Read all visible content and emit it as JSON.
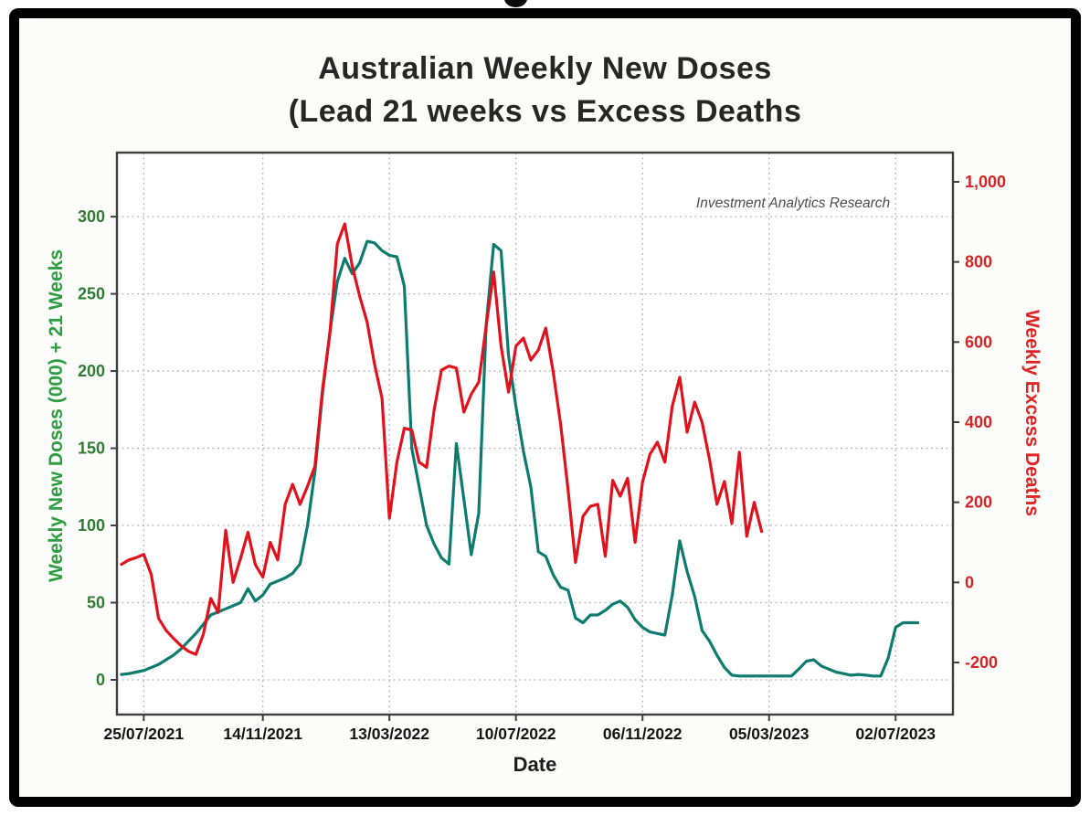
{
  "chart_data": {
    "type": "line",
    "title_line1": "Australian Weekly New Doses",
    "title_line2": "(Lead 21 weeks vs Excess Deaths",
    "annotation": "Investment Analytics Research",
    "xlabel": "Date",
    "grid": {
      "show": true,
      "style": "dotted",
      "color": "#b8b8b8"
    },
    "spine_color": "#3f3f3f",
    "x_domain": [
      -3.6,
      108.7
    ],
    "x_ticks": [
      {
        "week": 0,
        "label": "25/07/2021"
      },
      {
        "week": 16,
        "label": "14/11/2021"
      },
      {
        "week": 33,
        "label": "13/03/2022"
      },
      {
        "week": 50,
        "label": "10/07/2022"
      },
      {
        "week": 67,
        "label": "06/11/2022"
      },
      {
        "week": 84,
        "label": "05/03/2023"
      },
      {
        "week": 101,
        "label": "02/07/2023"
      }
    ],
    "left_axis": {
      "title": "Weekly New Doses (000) + 21 Weeks",
      "title_color": "#2f9e41",
      "tick_color": "#2e7d32",
      "ticks": [
        0,
        50,
        100,
        150,
        200,
        250,
        300
      ],
      "tick_labels": [
        "0",
        "50",
        "100",
        "150",
        "200",
        "250",
        "300"
      ],
      "range": [
        -22.5,
        341.5
      ]
    },
    "right_axis": {
      "title": "Weekly Excess Deaths",
      "title_color": "#e02424",
      "tick_color": "#d32525",
      "ticks": [
        -200,
        0,
        200,
        400,
        600,
        800,
        1000
      ],
      "tick_labels": [
        "-200",
        "0",
        "200",
        "400",
        "600",
        "800",
        "1,000"
      ],
      "range": [
        -330,
        1073
      ]
    },
    "series": [
      {
        "key": "doses",
        "name": "Weekly New Doses (000) + 21 Weeks",
        "axis": "left",
        "color": "#0e7b6f",
        "start_week": -3,
        "values": [
          3.5,
          4,
          5,
          6,
          8,
          10,
          13,
          16,
          20,
          25,
          30,
          36,
          42,
          44,
          46,
          48,
          50,
          59,
          51,
          55,
          62,
          64,
          66,
          69,
          75,
          100,
          135,
          185,
          225,
          258,
          273,
          263,
          270,
          284,
          283,
          278,
          275,
          274,
          255,
          150,
          125,
          100,
          88,
          79,
          75,
          153,
          117,
          81,
          108,
          230,
          282,
          278,
          210,
          177,
          148,
          125,
          83,
          80,
          68,
          60,
          58,
          40,
          37,
          42,
          42,
          45,
          49,
          51,
          47,
          39,
          34,
          31,
          30,
          29,
          55,
          90,
          70,
          54,
          32,
          25,
          16,
          8,
          3,
          2.5,
          2.5,
          2.5,
          2.5,
          2.5,
          2.5,
          2.5,
          2.5,
          7,
          12,
          13,
          9,
          7,
          5,
          4,
          3,
          3.5,
          3,
          2.5,
          2.5,
          14,
          34,
          37,
          37,
          37
        ]
      },
      {
        "key": "excess_deaths",
        "name": "Weekly Excess Deaths",
        "axis": "right",
        "color": "#e2121d",
        "start_week": -3,
        "values": [
          45,
          56,
          62,
          70,
          20,
          -90,
          -120,
          -140,
          -158,
          -172,
          -180,
          -130,
          -40,
          -75,
          130,
          0,
          60,
          125,
          44,
          13,
          100,
          56,
          195,
          245,
          195,
          240,
          290,
          480,
          620,
          845,
          895,
          790,
          715,
          650,
          545,
          460,
          160,
          300,
          385,
          380,
          300,
          287,
          430,
          530,
          540,
          535,
          425,
          470,
          500,
          640,
          775,
          590,
          475,
          590,
          610,
          555,
          580,
          635,
          525,
          395,
          230,
          50,
          165,
          190,
          195,
          65,
          255,
          215,
          260,
          100,
          250,
          320,
          350,
          300,
          440,
          512,
          375,
          450,
          400,
          307,
          195,
          252,
          147,
          325,
          115,
          200,
          127
        ]
      }
    ]
  }
}
